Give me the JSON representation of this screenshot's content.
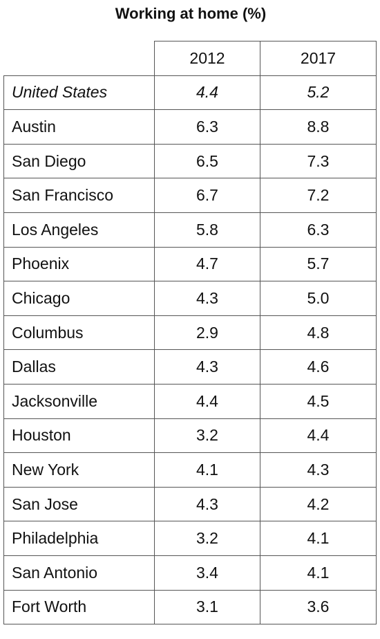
{
  "chart_data": {
    "type": "table",
    "title": "Working at home (%)",
    "columns": [
      "2012",
      "2017"
    ],
    "rows": [
      {
        "label": "United States",
        "values": [
          "4.4",
          "5.2"
        ],
        "italic": true
      },
      {
        "label": "Austin",
        "values": [
          "6.3",
          "8.8"
        ]
      },
      {
        "label": "San Diego",
        "values": [
          "6.5",
          "7.3"
        ]
      },
      {
        "label": "San Francisco",
        "values": [
          "6.7",
          "7.2"
        ]
      },
      {
        "label": "Los Angeles",
        "values": [
          "5.8",
          "6.3"
        ]
      },
      {
        "label": "Phoenix",
        "values": [
          "4.7",
          "5.7"
        ]
      },
      {
        "label": "Chicago",
        "values": [
          "4.3",
          "5.0"
        ]
      },
      {
        "label": "Columbus",
        "values": [
          "2.9",
          "4.8"
        ]
      },
      {
        "label": "Dallas",
        "values": [
          "4.3",
          "4.6"
        ]
      },
      {
        "label": "Jacksonville",
        "values": [
          "4.4",
          "4.5"
        ]
      },
      {
        "label": "Houston",
        "values": [
          "3.2",
          "4.4"
        ]
      },
      {
        "label": "New York",
        "values": [
          "4.1",
          "4.3"
        ]
      },
      {
        "label": "San Jose",
        "values": [
          "4.3",
          "4.2"
        ]
      },
      {
        "label": "Philadelphia",
        "values": [
          "3.2",
          "4.1"
        ]
      },
      {
        "label": "San Antonio",
        "values": [
          "3.4",
          "4.1"
        ]
      },
      {
        "label": "Fort Worth",
        "values": [
          "3.1",
          "3.6"
        ]
      }
    ]
  }
}
